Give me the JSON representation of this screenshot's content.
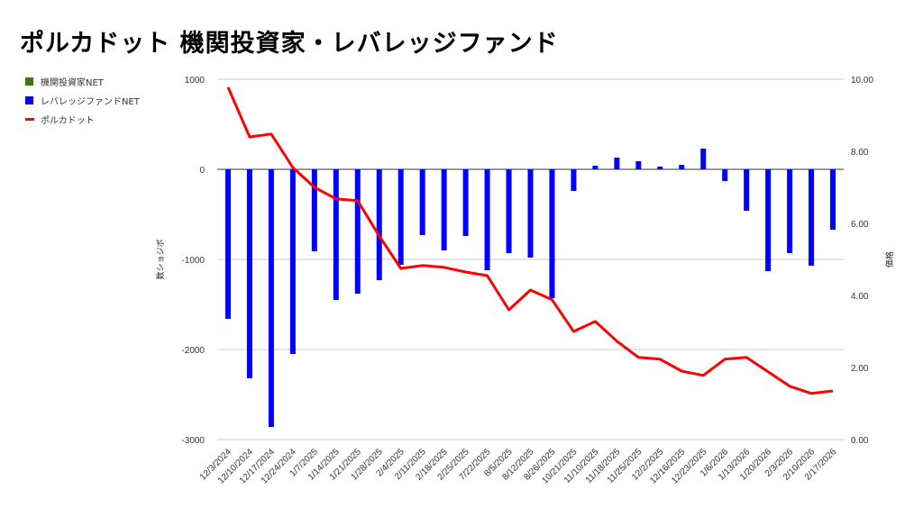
{
  "chart_data": {
    "type": "bar",
    "title": "ポルカドット 機関投資家・レバレッジファンド",
    "ylabel": "数ショジボ",
    "y2label": "価格",
    "ylim": [
      -3000,
      1000
    ],
    "y2lim": [
      0,
      10
    ],
    "yticks": [
      "1000",
      "0",
      "-1000",
      "-2000",
      "-3000"
    ],
    "y2ticks": [
      "10.00",
      "8.00",
      "6.00",
      "4.00",
      "2.00",
      "0.00"
    ],
    "grid": true,
    "legend_position": "top-left",
    "categories": [
      "12/3/2024",
      "12/10/2024",
      "12/17/2024",
      "12/24/2024",
      "1/7/2025",
      "1/14/2025",
      "1/21/2025",
      "1/28/2025",
      "2/4/2025",
      "2/11/2025",
      "2/18/2025",
      "2/25/2025",
      "7/22/2025",
      "8/5/2025",
      "8/12/2025",
      "8/26/2025",
      "10/21/2025",
      "11/10/2025",
      "11/18/2025",
      "11/25/2025",
      "12/2/2025",
      "12/16/2025",
      "12/23/2025",
      "1/6/2026",
      "1/13/2026",
      "1/20/2026",
      "2/3/2026",
      "2/10/2026",
      "2/17/2026"
    ],
    "series": [
      {
        "name": "機関投資家NET",
        "type": "bar",
        "axis": "left",
        "color": "#38761d",
        "values": [
          0,
          0,
          0,
          0,
          0,
          0,
          0,
          0,
          0,
          0,
          0,
          0,
          0,
          0,
          0,
          0,
          0,
          0,
          0,
          0,
          0,
          0,
          0,
          0,
          0,
          0,
          0,
          0,
          0
        ]
      },
      {
        "name": "レバレッジファンドNET",
        "type": "bar",
        "axis": "left",
        "color": "#0000ff",
        "values": [
          -1660,
          -2320,
          -2860,
          -2050,
          -910,
          -1450,
          -1380,
          -1230,
          -1060,
          -730,
          -900,
          -740,
          -1120,
          -930,
          -980,
          -1430,
          -240,
          40,
          130,
          90,
          30,
          50,
          230,
          -130,
          -460,
          -1130,
          -930,
          -1070,
          -670
        ]
      },
      {
        "name": "ポルカドット",
        "type": "line",
        "axis": "right",
        "color": "#ff0000",
        "values": [
          9.78,
          8.4,
          8.48,
          7.55,
          7.0,
          6.68,
          6.63,
          5.65,
          4.75,
          4.83,
          4.78,
          4.65,
          4.55,
          3.6,
          4.15,
          3.88,
          3.0,
          3.28,
          2.73,
          2.28,
          2.23,
          1.9,
          1.78,
          2.23,
          2.28,
          1.88,
          1.48,
          1.28,
          1.35
        ]
      }
    ]
  }
}
